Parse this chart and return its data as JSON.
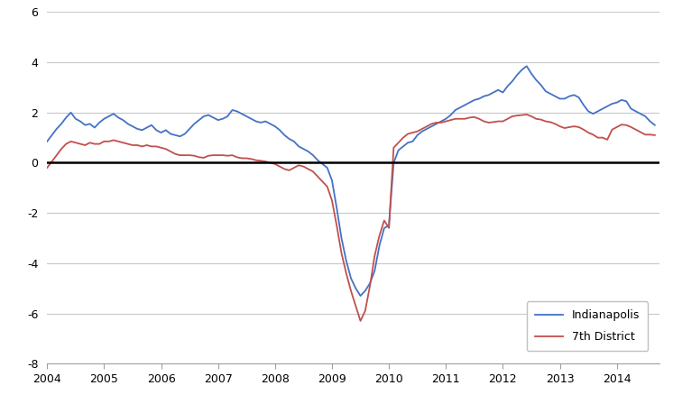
{
  "indy_data": [
    [
      2004.0,
      0.85
    ],
    [
      2004.083,
      1.1
    ],
    [
      2004.167,
      1.35
    ],
    [
      2004.25,
      1.55
    ],
    [
      2004.333,
      1.8
    ],
    [
      2004.417,
      2.0
    ],
    [
      2004.5,
      1.75
    ],
    [
      2004.583,
      1.65
    ],
    [
      2004.667,
      1.5
    ],
    [
      2004.75,
      1.55
    ],
    [
      2004.833,
      1.4
    ],
    [
      2004.917,
      1.6
    ],
    [
      2005.0,
      1.75
    ],
    [
      2005.083,
      1.85
    ],
    [
      2005.167,
      1.95
    ],
    [
      2005.25,
      1.8
    ],
    [
      2005.333,
      1.7
    ],
    [
      2005.417,
      1.55
    ],
    [
      2005.5,
      1.45
    ],
    [
      2005.583,
      1.35
    ],
    [
      2005.667,
      1.3
    ],
    [
      2005.75,
      1.4
    ],
    [
      2005.833,
      1.5
    ],
    [
      2005.917,
      1.3
    ],
    [
      2006.0,
      1.2
    ],
    [
      2006.083,
      1.3
    ],
    [
      2006.167,
      1.15
    ],
    [
      2006.25,
      1.1
    ],
    [
      2006.333,
      1.05
    ],
    [
      2006.417,
      1.15
    ],
    [
      2006.5,
      1.35
    ],
    [
      2006.583,
      1.55
    ],
    [
      2006.667,
      1.7
    ],
    [
      2006.75,
      1.85
    ],
    [
      2006.833,
      1.9
    ],
    [
      2006.917,
      1.8
    ],
    [
      2007.0,
      1.7
    ],
    [
      2007.083,
      1.75
    ],
    [
      2007.167,
      1.85
    ],
    [
      2007.25,
      2.1
    ],
    [
      2007.333,
      2.05
    ],
    [
      2007.417,
      1.95
    ],
    [
      2007.5,
      1.85
    ],
    [
      2007.583,
      1.75
    ],
    [
      2007.667,
      1.65
    ],
    [
      2007.75,
      1.6
    ],
    [
      2007.833,
      1.65
    ],
    [
      2007.917,
      1.55
    ],
    [
      2008.0,
      1.45
    ],
    [
      2008.083,
      1.3
    ],
    [
      2008.167,
      1.1
    ],
    [
      2008.25,
      0.95
    ],
    [
      2008.333,
      0.85
    ],
    [
      2008.417,
      0.65
    ],
    [
      2008.5,
      0.55
    ],
    [
      2008.583,
      0.45
    ],
    [
      2008.667,
      0.3
    ],
    [
      2008.75,
      0.1
    ],
    [
      2008.833,
      -0.05
    ],
    [
      2008.917,
      -0.2
    ],
    [
      2009.0,
      -0.7
    ],
    [
      2009.083,
      -1.8
    ],
    [
      2009.167,
      -3.0
    ],
    [
      2009.25,
      -3.9
    ],
    [
      2009.333,
      -4.6
    ],
    [
      2009.417,
      -5.0
    ],
    [
      2009.5,
      -5.3
    ],
    [
      2009.583,
      -5.1
    ],
    [
      2009.667,
      -4.8
    ],
    [
      2009.75,
      -4.3
    ],
    [
      2009.833,
      -3.3
    ],
    [
      2009.917,
      -2.6
    ],
    [
      2010.0,
      -2.5
    ],
    [
      2010.083,
      0.0
    ],
    [
      2010.167,
      0.5
    ],
    [
      2010.25,
      0.65
    ],
    [
      2010.333,
      0.8
    ],
    [
      2010.417,
      0.85
    ],
    [
      2010.5,
      1.1
    ],
    [
      2010.583,
      1.25
    ],
    [
      2010.667,
      1.35
    ],
    [
      2010.75,
      1.45
    ],
    [
      2010.833,
      1.55
    ],
    [
      2010.917,
      1.65
    ],
    [
      2011.0,
      1.75
    ],
    [
      2011.083,
      1.9
    ],
    [
      2011.167,
      2.1
    ],
    [
      2011.25,
      2.2
    ],
    [
      2011.333,
      2.3
    ],
    [
      2011.417,
      2.4
    ],
    [
      2011.5,
      2.5
    ],
    [
      2011.583,
      2.55
    ],
    [
      2011.667,
      2.65
    ],
    [
      2011.75,
      2.7
    ],
    [
      2011.833,
      2.8
    ],
    [
      2011.917,
      2.9
    ],
    [
      2012.0,
      2.8
    ],
    [
      2012.083,
      3.05
    ],
    [
      2012.167,
      3.25
    ],
    [
      2012.25,
      3.5
    ],
    [
      2012.333,
      3.7
    ],
    [
      2012.417,
      3.85
    ],
    [
      2012.5,
      3.55
    ],
    [
      2012.583,
      3.3
    ],
    [
      2012.667,
      3.1
    ],
    [
      2012.75,
      2.85
    ],
    [
      2012.833,
      2.75
    ],
    [
      2012.917,
      2.65
    ],
    [
      2013.0,
      2.55
    ],
    [
      2013.083,
      2.55
    ],
    [
      2013.167,
      2.65
    ],
    [
      2013.25,
      2.7
    ],
    [
      2013.333,
      2.6
    ],
    [
      2013.417,
      2.3
    ],
    [
      2013.5,
      2.05
    ],
    [
      2013.583,
      1.95
    ],
    [
      2013.667,
      2.05
    ],
    [
      2013.75,
      2.15
    ],
    [
      2013.833,
      2.25
    ],
    [
      2013.917,
      2.35
    ],
    [
      2014.0,
      2.4
    ],
    [
      2014.083,
      2.5
    ],
    [
      2014.167,
      2.45
    ],
    [
      2014.25,
      2.15
    ],
    [
      2014.333,
      2.05
    ],
    [
      2014.417,
      1.95
    ],
    [
      2014.5,
      1.85
    ],
    [
      2014.583,
      1.65
    ],
    [
      2014.667,
      1.5
    ]
  ],
  "seventh_data": [
    [
      2004.0,
      -0.2
    ],
    [
      2004.083,
      0.05
    ],
    [
      2004.167,
      0.3
    ],
    [
      2004.25,
      0.55
    ],
    [
      2004.333,
      0.75
    ],
    [
      2004.417,
      0.85
    ],
    [
      2004.5,
      0.8
    ],
    [
      2004.583,
      0.75
    ],
    [
      2004.667,
      0.7
    ],
    [
      2004.75,
      0.8
    ],
    [
      2004.833,
      0.75
    ],
    [
      2004.917,
      0.75
    ],
    [
      2005.0,
      0.85
    ],
    [
      2005.083,
      0.85
    ],
    [
      2005.167,
      0.9
    ],
    [
      2005.25,
      0.85
    ],
    [
      2005.333,
      0.8
    ],
    [
      2005.417,
      0.75
    ],
    [
      2005.5,
      0.7
    ],
    [
      2005.583,
      0.7
    ],
    [
      2005.667,
      0.65
    ],
    [
      2005.75,
      0.7
    ],
    [
      2005.833,
      0.65
    ],
    [
      2005.917,
      0.65
    ],
    [
      2006.0,
      0.6
    ],
    [
      2006.083,
      0.55
    ],
    [
      2006.167,
      0.45
    ],
    [
      2006.25,
      0.35
    ],
    [
      2006.333,
      0.3
    ],
    [
      2006.417,
      0.3
    ],
    [
      2006.5,
      0.3
    ],
    [
      2006.583,
      0.28
    ],
    [
      2006.667,
      0.22
    ],
    [
      2006.75,
      0.2
    ],
    [
      2006.833,
      0.28
    ],
    [
      2006.917,
      0.3
    ],
    [
      2007.0,
      0.3
    ],
    [
      2007.083,
      0.3
    ],
    [
      2007.167,
      0.28
    ],
    [
      2007.25,
      0.3
    ],
    [
      2007.333,
      0.22
    ],
    [
      2007.417,
      0.18
    ],
    [
      2007.5,
      0.18
    ],
    [
      2007.583,
      0.15
    ],
    [
      2007.667,
      0.1
    ],
    [
      2007.75,
      0.08
    ],
    [
      2007.833,
      0.05
    ],
    [
      2007.917,
      0.0
    ],
    [
      2008.0,
      -0.05
    ],
    [
      2008.083,
      -0.15
    ],
    [
      2008.167,
      -0.25
    ],
    [
      2008.25,
      -0.3
    ],
    [
      2008.333,
      -0.2
    ],
    [
      2008.417,
      -0.1
    ],
    [
      2008.5,
      -0.15
    ],
    [
      2008.583,
      -0.25
    ],
    [
      2008.667,
      -0.35
    ],
    [
      2008.75,
      -0.55
    ],
    [
      2008.833,
      -0.75
    ],
    [
      2008.917,
      -0.95
    ],
    [
      2009.0,
      -1.5
    ],
    [
      2009.083,
      -2.5
    ],
    [
      2009.167,
      -3.6
    ],
    [
      2009.25,
      -4.4
    ],
    [
      2009.333,
      -5.1
    ],
    [
      2009.417,
      -5.7
    ],
    [
      2009.5,
      -6.3
    ],
    [
      2009.583,
      -5.9
    ],
    [
      2009.667,
      -4.9
    ],
    [
      2009.75,
      -3.7
    ],
    [
      2009.833,
      -2.9
    ],
    [
      2009.917,
      -2.3
    ],
    [
      2010.0,
      -2.6
    ],
    [
      2010.083,
      0.6
    ],
    [
      2010.167,
      0.8
    ],
    [
      2010.25,
      1.0
    ],
    [
      2010.333,
      1.15
    ],
    [
      2010.417,
      1.2
    ],
    [
      2010.5,
      1.25
    ],
    [
      2010.583,
      1.35
    ],
    [
      2010.667,
      1.45
    ],
    [
      2010.75,
      1.55
    ],
    [
      2010.833,
      1.6
    ],
    [
      2010.917,
      1.6
    ],
    [
      2011.0,
      1.65
    ],
    [
      2011.083,
      1.7
    ],
    [
      2011.167,
      1.75
    ],
    [
      2011.25,
      1.75
    ],
    [
      2011.333,
      1.75
    ],
    [
      2011.417,
      1.8
    ],
    [
      2011.5,
      1.82
    ],
    [
      2011.583,
      1.75
    ],
    [
      2011.667,
      1.65
    ],
    [
      2011.75,
      1.6
    ],
    [
      2011.833,
      1.62
    ],
    [
      2011.917,
      1.65
    ],
    [
      2012.0,
      1.65
    ],
    [
      2012.083,
      1.75
    ],
    [
      2012.167,
      1.85
    ],
    [
      2012.25,
      1.88
    ],
    [
      2012.333,
      1.9
    ],
    [
      2012.417,
      1.92
    ],
    [
      2012.5,
      1.85
    ],
    [
      2012.583,
      1.75
    ],
    [
      2012.667,
      1.72
    ],
    [
      2012.75,
      1.65
    ],
    [
      2012.833,
      1.62
    ],
    [
      2012.917,
      1.55
    ],
    [
      2013.0,
      1.45
    ],
    [
      2013.083,
      1.38
    ],
    [
      2013.167,
      1.42
    ],
    [
      2013.25,
      1.45
    ],
    [
      2013.333,
      1.42
    ],
    [
      2013.417,
      1.32
    ],
    [
      2013.5,
      1.2
    ],
    [
      2013.583,
      1.12
    ],
    [
      2013.667,
      1.0
    ],
    [
      2013.75,
      1.0
    ],
    [
      2013.833,
      0.92
    ],
    [
      2013.917,
      1.32
    ],
    [
      2014.0,
      1.42
    ],
    [
      2014.083,
      1.52
    ],
    [
      2014.167,
      1.5
    ],
    [
      2014.25,
      1.42
    ],
    [
      2014.333,
      1.32
    ],
    [
      2014.417,
      1.22
    ],
    [
      2014.5,
      1.12
    ],
    [
      2014.583,
      1.12
    ],
    [
      2014.667,
      1.1
    ]
  ],
  "indy_color": "#4472C4",
  "seventh_color": "#C0504D",
  "indy_label": "Indianapolis",
  "seventh_label": "7th District",
  "xlim": [
    2004.0,
    2014.75
  ],
  "ylim": [
    -8,
    6
  ],
  "yticks": [
    -8,
    -6,
    -4,
    -2,
    0,
    2,
    4,
    6
  ],
  "xticks": [
    2004,
    2005,
    2006,
    2007,
    2008,
    2009,
    2010,
    2011,
    2012,
    2013,
    2014
  ],
  "grid_color": "#C8C8C8",
  "line_width": 1.3,
  "background_color": "#FFFFFF"
}
